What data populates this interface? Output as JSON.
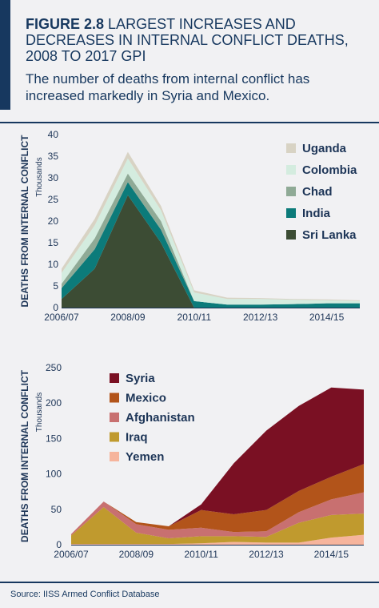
{
  "figure": {
    "label": "FIGURE 2.8",
    "title": "LARGEST INCREASES AND DECREASES IN INTERNAL CONFLICT DEATHS, 2008 TO 2017 GPI",
    "subtitle": "The number of deaths from internal conflict has increased markedly in Syria and Mexico."
  },
  "source": "Source: IISS Armed Conflict Database",
  "chart_data": [
    {
      "type": "area",
      "stacked": true,
      "ylabel": "DEATHS FROM INTERNAL CONFLICT",
      "yunit": "Thousands",
      "ylim": [
        0,
        40
      ],
      "yticks": [
        "0",
        "5",
        "10",
        "15",
        "20",
        "25",
        "30",
        "35",
        "40"
      ],
      "xlabels": [
        "2006/07",
        "2008/09",
        "2010/11",
        "2012/13",
        "2014/15"
      ],
      "x": [
        "2006/07",
        "2007/08",
        "2008/09",
        "2009/10",
        "2010/11",
        "2011/12",
        "2012/13",
        "2013/14",
        "2014/15",
        "2015/16"
      ],
      "legend_position": "top-right",
      "series": [
        {
          "name": "Sri Lanka",
          "color": "#3c4c34",
          "values": [
            2,
            9,
            26,
            15,
            0,
            0,
            0,
            0,
            0,
            0
          ]
        },
        {
          "name": "India",
          "color": "#0c7b7a",
          "values": [
            2.5,
            4.5,
            3,
            3,
            1.5,
            0.7,
            0.7,
            0.8,
            1,
            1
          ]
        },
        {
          "name": "Chad",
          "color": "#8faa96",
          "values": [
            1,
            2.5,
            2,
            2,
            0,
            0,
            0,
            0,
            0,
            0
          ]
        },
        {
          "name": "Colombia",
          "color": "#d4ecdf",
          "values": [
            2.5,
            3,
            3.5,
            2.5,
            2,
            1.3,
            1.3,
            1,
            0.7,
            0.5
          ]
        },
        {
          "name": "Uganda",
          "color": "#d8d3c4",
          "values": [
            1,
            1.5,
            1.5,
            1,
            0.5,
            0.3,
            0.2,
            0.2,
            0.2,
            0.2
          ]
        }
      ]
    },
    {
      "type": "area",
      "stacked": true,
      "ylabel": "DEATHS FROM INTERNAL CONFLICT",
      "yunit": "Thousands",
      "ylim": [
        0,
        250
      ],
      "yticks": [
        "0",
        "50",
        "100",
        "150",
        "200",
        "250"
      ],
      "xlabels": [
        "2006/07",
        "2008/09",
        "2010/11",
        "2012/13",
        "2014/15"
      ],
      "x": [
        "2006/07",
        "2007/08",
        "2008/09",
        "2009/10",
        "2010/11",
        "2011/12",
        "2012/13",
        "2013/14",
        "2014/15",
        "2015/16"
      ],
      "legend_position": "top-left",
      "series": [
        {
          "name": "Yemen",
          "color": "#f6b49c",
          "values": [
            1,
            1,
            1,
            1,
            2,
            4,
            3,
            3,
            10,
            14
          ]
        },
        {
          "name": "Iraq",
          "color": "#c09a2e",
          "values": [
            12,
            52,
            16,
            8,
            10,
            8,
            8,
            28,
            32,
            30
          ]
        },
        {
          "name": "Afghanistan",
          "color": "#c87070",
          "values": [
            2,
            8,
            12,
            12,
            12,
            6,
            8,
            15,
            22,
            30
          ]
        },
        {
          "name": "Mexico",
          "color": "#b2541a",
          "values": [
            0,
            0,
            3,
            5,
            25,
            25,
            30,
            30,
            32,
            40
          ]
        },
        {
          "name": "Syria",
          "color": "#7a1023",
          "values": [
            0,
            0,
            0,
            0,
            8,
            72,
            112,
            120,
            126,
            105
          ]
        }
      ]
    }
  ]
}
